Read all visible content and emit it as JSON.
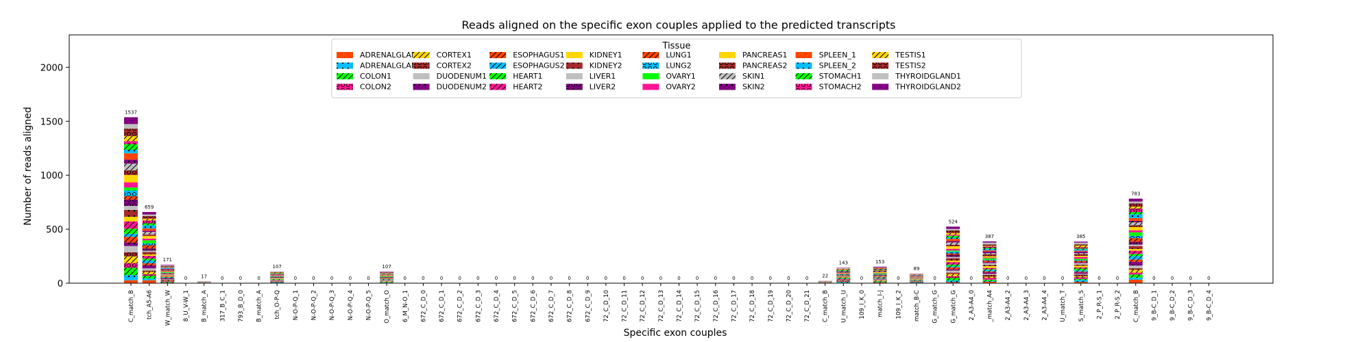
{
  "chart_data": {
    "type": "bar",
    "stacked": true,
    "title": "Reads aligned on the specific exon couples applied to the predicted transcripts",
    "xlabel": "Specific exon couples",
    "ylabel": "Number of reads aligned",
    "ylim": [
      0,
      2300
    ],
    "yticks": [
      0,
      500,
      1000,
      1500,
      2000
    ],
    "grid": false,
    "legend": {
      "title": "Tissue",
      "placement": "top-center",
      "ncol": 9,
      "entries": [
        {
          "name": "ADRENALGLAND1",
          "color": "#ff4500",
          "hatch": "none"
        },
        {
          "name": "ADRENALGLAND2",
          "color": "#00bfff",
          "hatch": "dots"
        },
        {
          "name": "COLON1",
          "color": "#00ff00",
          "hatch": "slash"
        },
        {
          "name": "COLON2",
          "color": "#ff1493",
          "hatch": "circles"
        },
        {
          "name": "CORTEX1",
          "color": "#ffd700",
          "hatch": "slash"
        },
        {
          "name": "CORTEX2",
          "color": "#a52a2a",
          "hatch": "circles"
        },
        {
          "name": "DUODENUM1",
          "color": "#c0c0c0",
          "hatch": "none"
        },
        {
          "name": "DUODENUM2",
          "color": "#800080",
          "hatch": "dots"
        },
        {
          "name": "ESOPHAGUS1",
          "color": "#ff4500",
          "hatch": "slash"
        },
        {
          "name": "ESOPHAGUS2",
          "color": "#00bfff",
          "hatch": "slash"
        },
        {
          "name": "HEART1",
          "color": "#00ff00",
          "hatch": "slash"
        },
        {
          "name": "HEART2",
          "color": "#ff1493",
          "hatch": "slash"
        },
        {
          "name": "KIDNEY1",
          "color": "#ffd700",
          "hatch": "none"
        },
        {
          "name": "KIDNEY2",
          "color": "#a52a2a",
          "hatch": "dots"
        },
        {
          "name": "LIVER1",
          "color": "#c0c0c0",
          "hatch": "none"
        },
        {
          "name": "LIVER2",
          "color": "#800080",
          "hatch": "circles"
        },
        {
          "name": "LUNG1",
          "color": "#ff4500",
          "hatch": "slash"
        },
        {
          "name": "LUNG2",
          "color": "#00bfff",
          "hatch": "circles"
        },
        {
          "name": "OVARY1",
          "color": "#00ff00",
          "hatch": "none"
        },
        {
          "name": "OVARY2",
          "color": "#ff1493",
          "hatch": "none"
        },
        {
          "name": "PANCREAS1",
          "color": "#ffd700",
          "hatch": "none"
        },
        {
          "name": "PANCREAS2",
          "color": "#a52a2a",
          "hatch": "circles"
        },
        {
          "name": "SKIN1",
          "color": "#c0c0c0",
          "hatch": "slash"
        },
        {
          "name": "SKIN2",
          "color": "#800080",
          "hatch": "dots"
        },
        {
          "name": "SPLEEN_1",
          "color": "#ff4500",
          "hatch": "none"
        },
        {
          "name": "SPLEEN_2",
          "color": "#00bfff",
          "hatch": "dots"
        },
        {
          "name": "STOMACH1",
          "color": "#00ff00",
          "hatch": "slash"
        },
        {
          "name": "STOMACH2",
          "color": "#ff1493",
          "hatch": "circles"
        },
        {
          "name": "TESTIS1",
          "color": "#ffd700",
          "hatch": "slash"
        },
        {
          "name": "TESTIS2",
          "color": "#a52a2a",
          "hatch": "circles"
        },
        {
          "name": "THYROIDGLAND1",
          "color": "#c0c0c0",
          "hatch": "none"
        },
        {
          "name": "THYROIDGLAND2",
          "color": "#800080",
          "hatch": "none"
        }
      ]
    },
    "categories": [
      "C_match_B",
      "tch_A5-A6",
      "W_match_W",
      "8_U_V-W_1",
      "B_match_A",
      "317_B_C_1",
      "793_B_D_0",
      "B_match_A",
      "tch_O-P-Q",
      "N-O-P-Q_1",
      "N-O-P-Q_2",
      "N-O-P-Q_3",
      "N-O-P-Q_4",
      "N-O-P-Q_5",
      "O_match_O",
      "6_M_N-O_1",
      "672_C_D_0",
      "672_C_D_1",
      "672_C_D_2",
      "672_C_D_3",
      "672_C_D_4",
      "672_C_D_5",
      "672_C_D_6",
      "672_C_D_7",
      "672_C_D_8",
      "672_C_D_9",
      "72_C_D_10",
      "72_C_D_11",
      "72_C_D_12",
      "72_C_D_13",
      "72_C_D_14",
      "72_C_D_15",
      "72_C_D_16",
      "72_C_D_17",
      "72_C_D_18",
      "72_C_D_19",
      "72_C_D_20",
      "72_C_D_21",
      "C_match_B",
      "U_match_U",
      "109_I_K_0",
      "match_I-J",
      "109_I_K_2",
      "match_B-C",
      "G_match_G",
      "G_match_G",
      "2_A3-A4_0",
      "_match_A4",
      "2_A3-A4_2",
      "2_A3-A4_3",
      "2_A3-A4_4",
      "U_match_T",
      "S_match_S",
      "2_P_R-S_1",
      "2_P_R-S_2",
      "C_match_B",
      "9_B-C_D_1",
      "9_B-C_D_2",
      "9_B-C_D_3",
      "9_B-C_D_4"
    ],
    "totals": [
      1537,
      659,
      171,
      0,
      17,
      0,
      0,
      0,
      107,
      0,
      0,
      0,
      0,
      0,
      107,
      0,
      0,
      0,
      0,
      0,
      0,
      0,
      0,
      0,
      0,
      0,
      0,
      0,
      0,
      0,
      0,
      0,
      0,
      0,
      0,
      0,
      0,
      0,
      22,
      143,
      0,
      153,
      0,
      89,
      0,
      524,
      0,
      387,
      0,
      0,
      0,
      0,
      385,
      0,
      0,
      783,
      0,
      0,
      0,
      0
    ]
  }
}
